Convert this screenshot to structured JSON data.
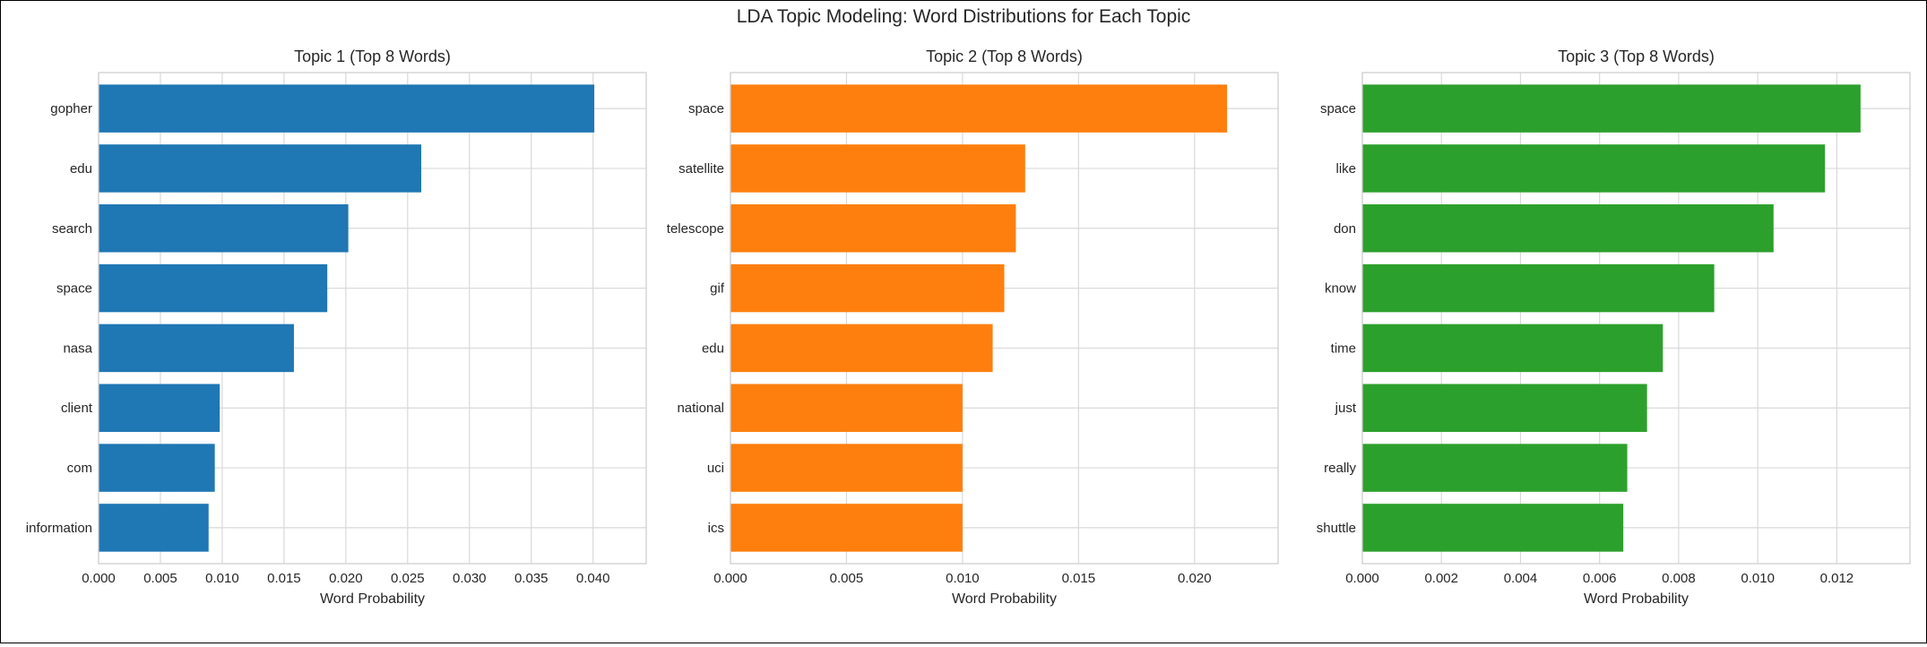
{
  "figure": {
    "suptitle": "LDA Topic Modeling: Word Distributions for Each Topic"
  },
  "chart_data": [
    {
      "type": "bar",
      "orientation": "horizontal",
      "title": "Topic 1 (Top 8 Words)",
      "xlabel": "Word Probability",
      "ylabel": "",
      "categories": [
        "gopher",
        "edu",
        "search",
        "space",
        "nasa",
        "client",
        "com",
        "information"
      ],
      "values": [
        0.0401,
        0.0261,
        0.0202,
        0.0185,
        0.0158,
        0.0098,
        0.0094,
        0.0089
      ],
      "xlim": [
        0,
        0.0443
      ],
      "xticks": [
        0,
        0.005,
        0.01,
        0.015,
        0.02,
        0.025,
        0.03,
        0.035,
        0.04
      ],
      "xtick_labels": [
        "0.000",
        "0.005",
        "0.010",
        "0.015",
        "0.020",
        "0.025",
        "0.030",
        "0.035",
        "0.040"
      ],
      "color": "#1f77b4",
      "grid": true
    },
    {
      "type": "bar",
      "orientation": "horizontal",
      "title": "Topic 2 (Top 8 Words)",
      "xlabel": "Word Probability",
      "ylabel": "",
      "categories": [
        "space",
        "satellite",
        "telescope",
        "gif",
        "edu",
        "national",
        "uci",
        "ics"
      ],
      "values": [
        0.0214,
        0.0127,
        0.0123,
        0.0118,
        0.0113,
        0.01,
        0.01,
        0.01
      ],
      "xlim": [
        0,
        0.0236
      ],
      "xticks": [
        0,
        0.005,
        0.01,
        0.015,
        0.02
      ],
      "xtick_labels": [
        "0.000",
        "0.005",
        "0.010",
        "0.015",
        "0.020"
      ],
      "color": "#ff7f0e",
      "grid": true
    },
    {
      "type": "bar",
      "orientation": "horizontal",
      "title": "Topic 3 (Top 8 Words)",
      "xlabel": "Word Probability",
      "ylabel": "",
      "categories": [
        "space",
        "like",
        "don",
        "know",
        "time",
        "just",
        "really",
        "shuttle"
      ],
      "values": [
        0.0126,
        0.0117,
        0.0104,
        0.0089,
        0.0076,
        0.0072,
        0.0067,
        0.0066
      ],
      "xlim": [
        0,
        0.01385
      ],
      "xticks": [
        0,
        0.002,
        0.004,
        0.006,
        0.008,
        0.01,
        0.012
      ],
      "xtick_labels": [
        "0.000",
        "0.002",
        "0.004",
        "0.006",
        "0.008",
        "0.010",
        "0.012"
      ],
      "color": "#2ca02c",
      "grid": true
    }
  ]
}
